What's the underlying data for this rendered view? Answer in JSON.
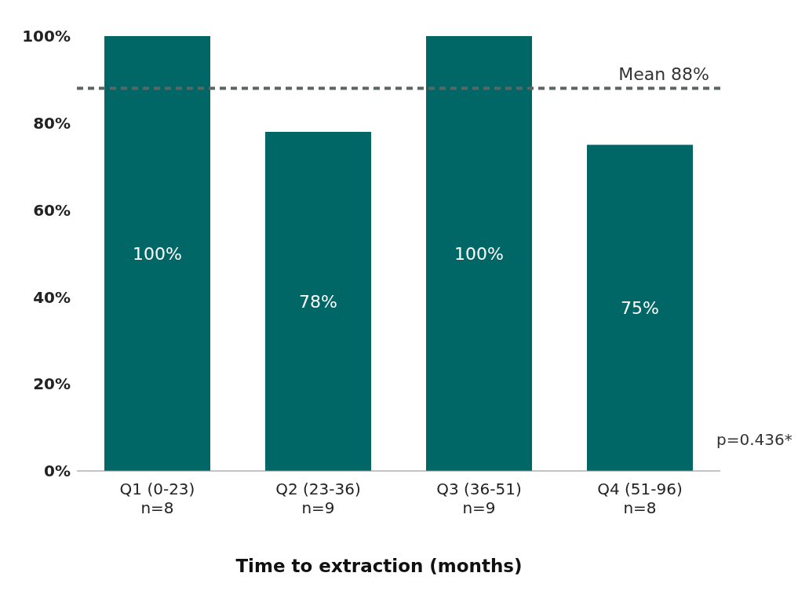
{
  "chart_data": {
    "type": "bar",
    "xlabel": "Time to extraction (months)",
    "categories": [
      "Q1 (0-23)\nn=8",
      "Q2 (23-36)\nn=9",
      "Q3 (36-51)\nn=9",
      "Q4 (51-96)\nn=8"
    ],
    "values": [
      100,
      78,
      100,
      75
    ],
    "color": "#006666",
    "value_labels": [
      "100%",
      "78%",
      "100%",
      "75%"
    ],
    "ylim": [
      0,
      100
    ],
    "yticks": [
      {
        "value": 0,
        "label": "0%"
      },
      {
        "value": 20,
        "label": "20%"
      },
      {
        "value": 40,
        "label": "40%"
      },
      {
        "value": 60,
        "label": "60%"
      },
      {
        "value": 80,
        "label": "80%"
      },
      {
        "value": 100,
        "label": "100%"
      }
    ],
    "ref_lines": [
      {
        "axis": "y",
        "value": 88,
        "label": "Mean 88%",
        "color": "#5a6662",
        "line_style": "dashed"
      }
    ],
    "annotations": [
      "p=0.436*"
    ],
    "grid": false,
    "legend": false
  }
}
